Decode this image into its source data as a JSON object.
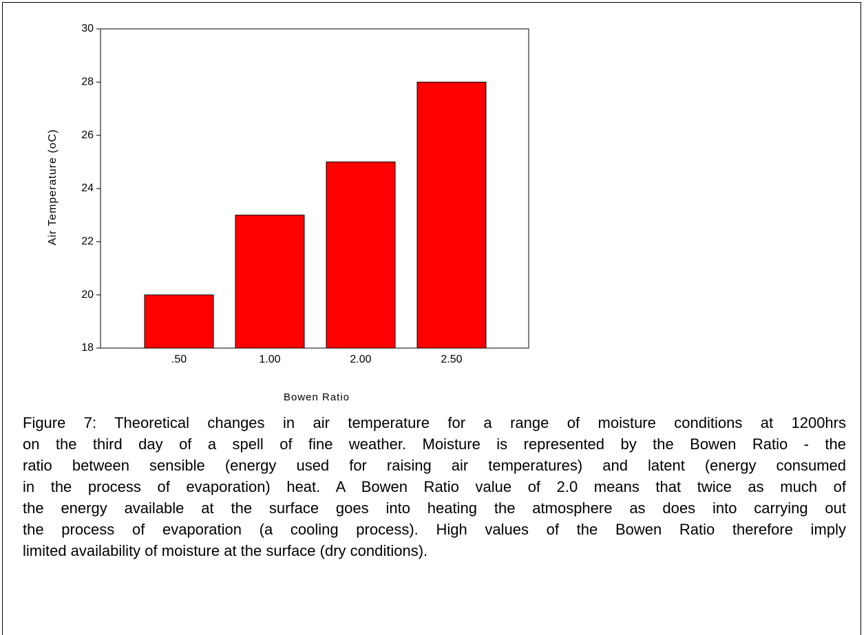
{
  "chart_data": {
    "type": "bar",
    "x_label": "Bowen Ratio",
    "y_label": "Air Temperature (oC)",
    "categories": [
      ".50",
      "1.00",
      "2.00",
      "2.50"
    ],
    "values": [
      20,
      23,
      25,
      28
    ],
    "color": "#ff0000",
    "ylim": [
      18,
      30
    ],
    "yticks": [
      18,
      20,
      22,
      24,
      26,
      28,
      30
    ],
    "grid": false
  },
  "caption_lines": [
    "Figure 7: Theoretical changes in air temperature for a range of moisture conditions at 1200hrs",
    "on the third day of a spell of fine weather. Moisture is represented by the Bowen Ratio - the",
    "ratio between sensible (energy used for raising air temperatures) and latent (energy consumed",
    "in the process of evaporation) heat. A Bowen Ratio value of 2.0 means that twice as much of",
    "the energy available at the surface goes into heating the atmosphere as does into carrying out",
    "the process of evaporation (a cooling process). High values of the Bowen Ratio therefore imply",
    "limited availability of moisture at the surface (dry conditions)."
  ]
}
